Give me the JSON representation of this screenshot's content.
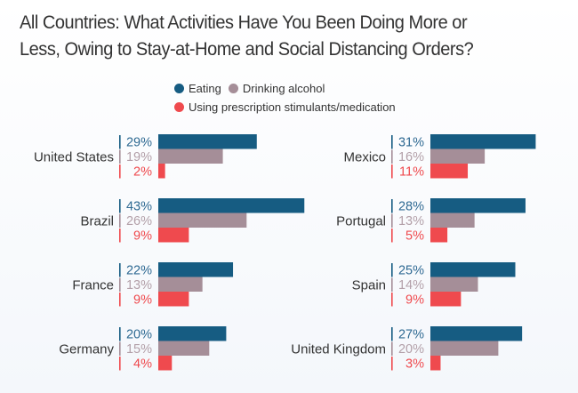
{
  "chart_data": {
    "type": "bar",
    "orientation": "horizontal",
    "title": "All Countries: What Activities Have You Been Doing More or Less, Owing to Stay-at-Home and Social Distancing Orders?",
    "title_lines": [
      "All Countries: What Activities Have You Been Doing More or",
      "Less, Owing to Stay-at-Home and Social Distancing Orders?"
    ],
    "legend_placement": "top-center",
    "unit": "%",
    "xlim": [
      0,
      45
    ],
    "series": [
      {
        "name": "Eating",
        "color": "#165c82"
      },
      {
        "name": "Drinking alcohol",
        "color": "#a58e98"
      },
      {
        "name": "Using prescription stimulants/medication",
        "color": "#ef4a4e"
      }
    ],
    "panels": [
      {
        "position": "left",
        "groups": [
          {
            "country": "United States",
            "values": [
              29,
              19,
              2
            ]
          },
          {
            "country": "Brazil",
            "values": [
              43,
              26,
              9
            ]
          },
          {
            "country": "France",
            "values": [
              22,
              13,
              9
            ]
          },
          {
            "country": "Germany",
            "values": [
              20,
              15,
              4
            ]
          }
        ]
      },
      {
        "position": "right",
        "groups": [
          {
            "country": "Mexico",
            "values": [
              31,
              16,
              11
            ]
          },
          {
            "country": "Portugal",
            "values": [
              28,
              13,
              5
            ]
          },
          {
            "country": "Spain",
            "values": [
              25,
              14,
              9
            ]
          },
          {
            "country": "United Kingdom",
            "values": [
              27,
              20,
              3
            ]
          }
        ]
      }
    ]
  }
}
